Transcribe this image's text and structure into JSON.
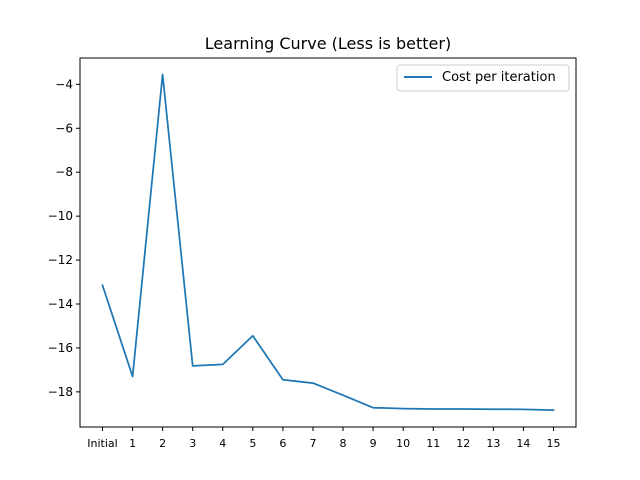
{
  "chart_data": {
    "type": "line",
    "title": "Learning Curve (Less is better)",
    "xlabel": "",
    "ylabel": "",
    "categories": [
      "Initial",
      "1",
      "2",
      "3",
      "4",
      "5",
      "6",
      "7",
      "8",
      "9",
      "10",
      "11",
      "12",
      "13",
      "14",
      "15"
    ],
    "series": [
      {
        "name": "Cost per iteration",
        "color": "#1f77b4",
        "values": [
          -13.15,
          -17.3,
          -3.55,
          -16.82,
          -16.75,
          -15.45,
          -17.45,
          -17.6,
          -18.15,
          -18.72,
          -18.76,
          -18.78,
          -18.78,
          -18.79,
          -18.8,
          -18.83
        ]
      }
    ],
    "yticks": [
      -4,
      -6,
      -8,
      -10,
      -12,
      -14,
      -16,
      -18
    ],
    "ylim": [
      -19.6,
      -2.8
    ],
    "grid": false,
    "legend": "top-right"
  }
}
